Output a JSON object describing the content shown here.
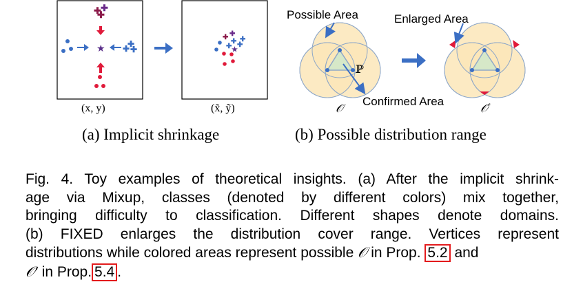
{
  "panel_a": {
    "left_label": "(x, y)",
    "right_label": "(x̃, ỹ)",
    "subcaption": "(a)  Implicit shrinkage"
  },
  "panel_b": {
    "possible_area": "Possible Area",
    "enlarged_area": "Enlarged Area",
    "confirmed_area": "Confirmed Area",
    "P_label": "ℙ",
    "O_label": "𝒪",
    "O_prime_label": "𝒪′",
    "subcaption": "(b)  Possible distribution range"
  },
  "colors": {
    "blue": "#3b6fc4",
    "red": "#e01a3a",
    "purple": "#5a2f8a",
    "circle_fill": "#fbe6b8",
    "circle_stroke": "#8fa8c8",
    "triangle_fill": "#d6e8c8",
    "ref_box": "#e31a1c"
  },
  "caption": {
    "line1": "Fig. 4. Toy examples of theoretical insights. (a) After the implicit shrink-",
    "line2": "age via Mixup, classes (denoted by different colors) mix together,",
    "line3": "bringing difficulty to classification. Different shapes denote domains.",
    "line4": "(b) FIXED enlarges the distribution cover range. Vertices represent",
    "line5_a": "distributions while colored areas represent possible",
    "line5_O": "𝒪",
    "line5_b": "in Prop.",
    "ref1": "5.2",
    "line5_c": "and",
    "line6_O": "𝒪′",
    "line6_a": "in Prop.",
    "ref2": "5.4",
    "line6_end": "."
  }
}
